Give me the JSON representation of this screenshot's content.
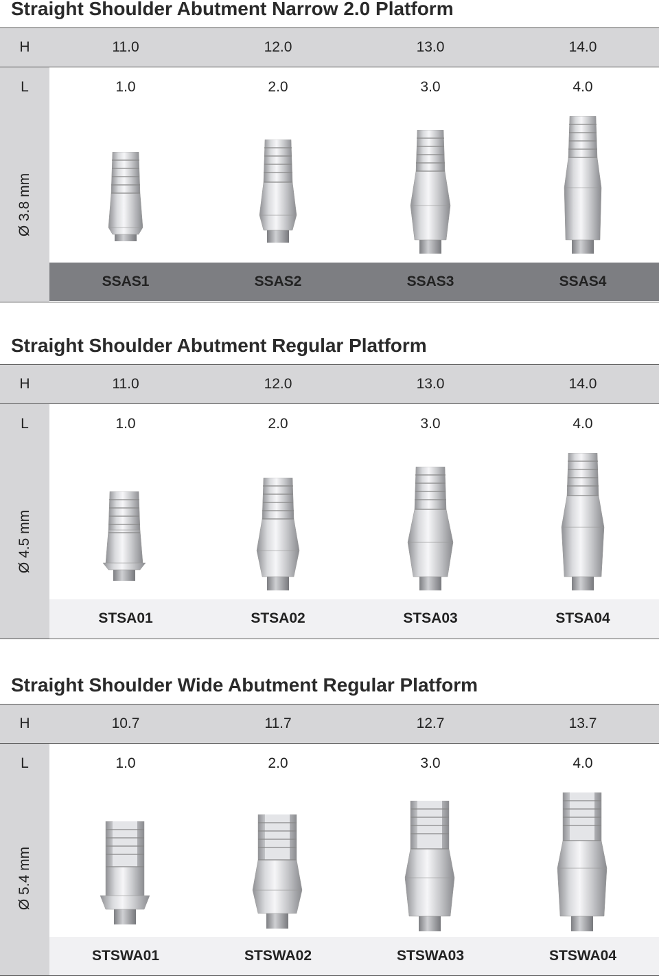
{
  "sections": [
    {
      "title": "Straight Shoulder Abutment Narrow 2.0 Platform",
      "h_label": "H",
      "l_label": "L",
      "diameter": "Ø 3.8 mm",
      "heights": [
        "11.0",
        "12.0",
        "13.0",
        "14.0"
      ],
      "lengths": [
        "1.0",
        "2.0",
        "3.0",
        "4.0"
      ],
      "codes": [
        "SSAS1",
        "SSAS2",
        "SSAS3",
        "SSAS4"
      ],
      "code_bar_color": "#7d7e82"
    },
    {
      "title": "Straight Shoulder Abutment Regular Platform",
      "h_label": "H",
      "l_label": "L",
      "diameter": "Ø 4.5 mm",
      "heights": [
        "11.0",
        "12.0",
        "13.0",
        "14.0"
      ],
      "lengths": [
        "1.0",
        "2.0",
        "3.0",
        "4.0"
      ],
      "codes": [
        "STSA01",
        "STSA02",
        "STSA03",
        "STSA04"
      ],
      "code_bar_color": "#f1f1f3"
    },
    {
      "title": "Straight Shoulder Wide Abutment Regular Platform",
      "h_label": "H",
      "l_label": "L",
      "diameter": "Ø 5.4 mm",
      "heights": [
        "10.7",
        "11.7",
        "12.7",
        "13.7"
      ],
      "lengths": [
        "1.0",
        "2.0",
        "3.0",
        "4.0"
      ],
      "codes": [
        "STSWA01",
        "STSWA02",
        "STSWA03",
        "STSWA04"
      ],
      "code_bar_color": "#f1f1f3"
    }
  ],
  "colors": {
    "header_bg": "#d6d6d8",
    "metal_light": "#f0f0f2",
    "metal_dark": "#9a9b9f"
  },
  "icons": [
    "abutment-image"
  ]
}
